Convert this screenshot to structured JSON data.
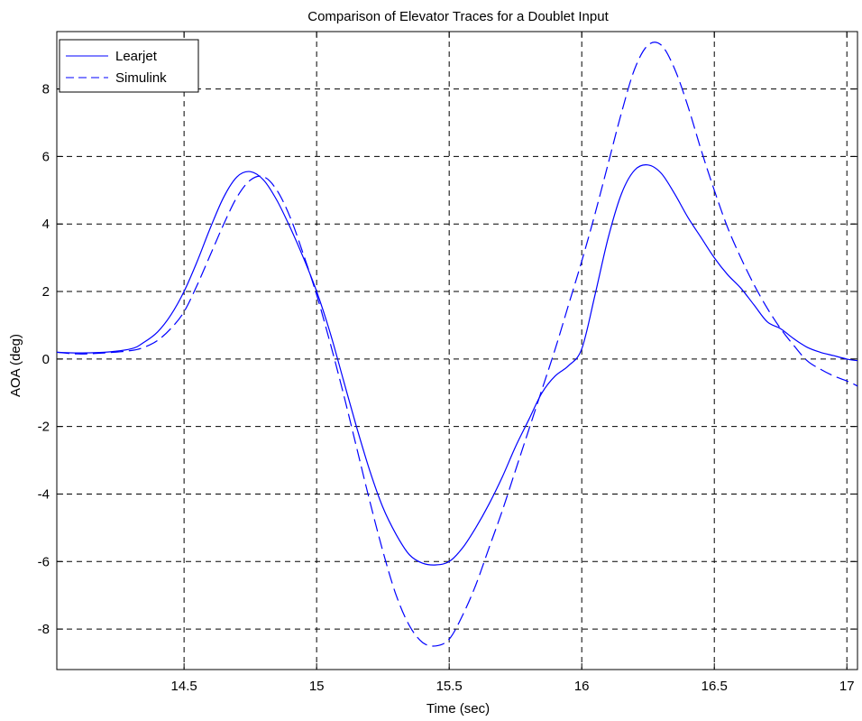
{
  "colors": {
    "series": "#0000ff",
    "grid": "#000000",
    "axes": "#000000",
    "background": "#ffffff"
  },
  "chart_data": {
    "type": "line",
    "title": "Comparison of Elevator Traces for a Doublet Input",
    "xlabel": "Time (sec)",
    "ylabel": "AOA (deg)",
    "xlim": [
      14.02,
      17.04
    ],
    "ylim": [
      -9.2,
      9.7
    ],
    "xticks": [
      14.5,
      15,
      15.5,
      16,
      16.5,
      17
    ],
    "xtick_labels": [
      "14.5",
      "15",
      "15.5",
      "16",
      "16.5",
      "17"
    ],
    "yticks": [
      -8,
      -6,
      -4,
      -2,
      0,
      2,
      4,
      6,
      8
    ],
    "ytick_labels": [
      "-8",
      "-6",
      "-4",
      "-2",
      "0",
      "2",
      "4",
      "6",
      "8"
    ],
    "grid": true,
    "legend_position": "top-left",
    "series": [
      {
        "name": "Learjet",
        "line_style": "solid",
        "x": [
          14.02,
          14.1,
          14.2,
          14.3,
          14.35,
          14.4,
          14.45,
          14.5,
          14.55,
          14.6,
          14.65,
          14.7,
          14.75,
          14.8,
          14.85,
          14.9,
          14.95,
          15.0,
          15.05,
          15.1,
          15.15,
          15.2,
          15.25,
          15.3,
          15.35,
          15.4,
          15.45,
          15.5,
          15.55,
          15.6,
          15.65,
          15.7,
          15.75,
          15.8,
          15.85,
          15.9,
          15.95,
          16.0,
          16.05,
          16.1,
          16.15,
          16.2,
          16.25,
          16.3,
          16.35,
          16.4,
          16.45,
          16.5,
          16.55,
          16.6,
          16.65,
          16.7,
          16.75,
          16.8,
          16.85,
          16.9,
          16.95,
          17.0,
          17.04
        ],
        "y": [
          0.2,
          0.18,
          0.2,
          0.3,
          0.5,
          0.8,
          1.3,
          2.0,
          2.9,
          3.9,
          4.8,
          5.4,
          5.55,
          5.3,
          4.7,
          3.9,
          3.0,
          2.0,
          0.8,
          -0.6,
          -2.0,
          -3.3,
          -4.4,
          -5.2,
          -5.8,
          -6.05,
          -6.1,
          -6.0,
          -5.6,
          -5.0,
          -4.3,
          -3.5,
          -2.6,
          -1.8,
          -1.0,
          -0.5,
          -0.2,
          0.3,
          1.9,
          3.6,
          4.9,
          5.6,
          5.75,
          5.5,
          4.9,
          4.2,
          3.6,
          3.0,
          2.5,
          2.1,
          1.6,
          1.1,
          0.9,
          0.6,
          0.35,
          0.2,
          0.1,
          0.0,
          -0.05
        ]
      },
      {
        "name": "Simulink",
        "line_style": "dashed",
        "x": [
          14.02,
          14.1,
          14.2,
          14.3,
          14.35,
          14.4,
          14.45,
          14.5,
          14.55,
          14.6,
          14.65,
          14.7,
          14.75,
          14.8,
          14.85,
          14.9,
          14.95,
          15.0,
          15.05,
          15.1,
          15.15,
          15.2,
          15.25,
          15.3,
          15.35,
          15.4,
          15.45,
          15.5,
          15.55,
          15.6,
          15.65,
          15.7,
          15.75,
          15.8,
          15.85,
          15.9,
          15.95,
          16.0,
          16.05,
          16.1,
          16.15,
          16.2,
          16.25,
          16.3,
          16.35,
          16.4,
          16.45,
          16.5,
          16.55,
          16.6,
          16.65,
          16.7,
          16.75,
          16.8,
          16.85,
          16.9,
          16.95,
          17.0,
          17.04
        ],
        "y": [
          0.2,
          0.15,
          0.18,
          0.25,
          0.35,
          0.55,
          0.9,
          1.4,
          2.2,
          3.1,
          4.0,
          4.8,
          5.3,
          5.4,
          5.0,
          4.2,
          3.1,
          1.9,
          0.5,
          -1.0,
          -2.6,
          -4.2,
          -5.7,
          -7.0,
          -7.9,
          -8.4,
          -8.5,
          -8.3,
          -7.6,
          -6.7,
          -5.6,
          -4.5,
          -3.3,
          -2.1,
          -0.9,
          0.3,
          1.6,
          2.9,
          4.3,
          5.8,
          7.3,
          8.6,
          9.3,
          9.3,
          8.6,
          7.5,
          6.2,
          5.0,
          3.9,
          3.0,
          2.2,
          1.5,
          0.9,
          0.4,
          -0.05,
          -0.3,
          -0.5,
          -0.65,
          -0.8
        ]
      }
    ]
  }
}
